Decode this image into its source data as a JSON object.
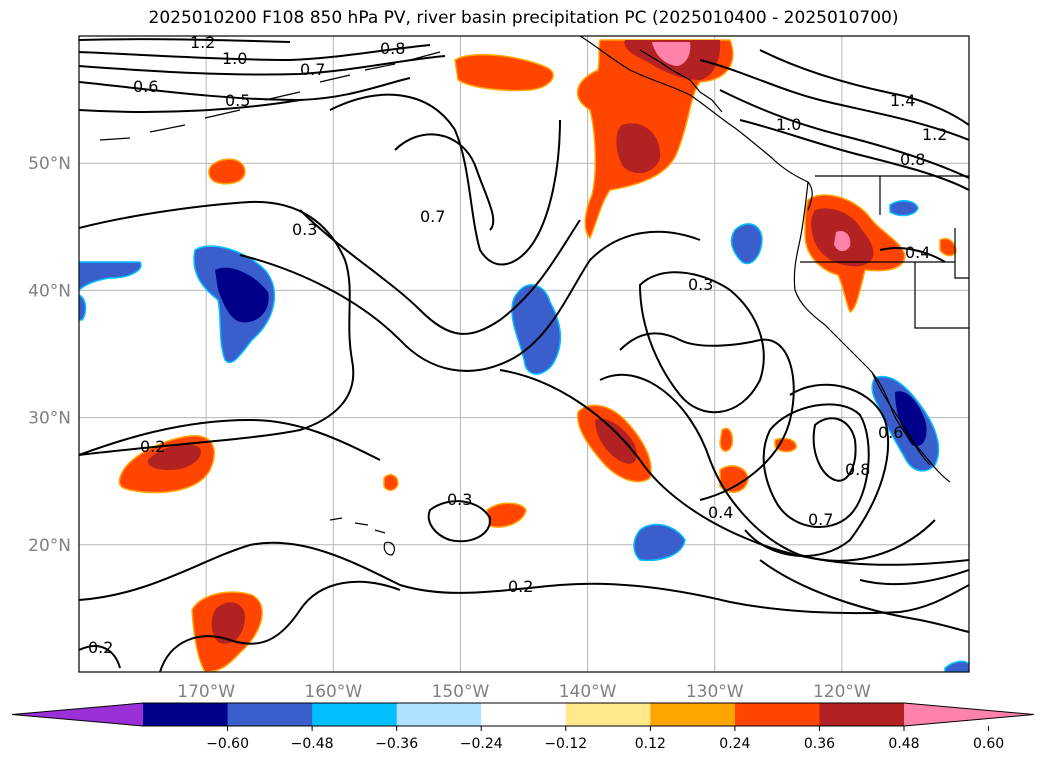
{
  "title": "2025010200 F108 850 hPa PV, river basin precipitation PC (2025010400 - 2025010700)",
  "map": {
    "projection": "PlateCarree",
    "lon_range": [
      -180,
      -110
    ],
    "lat_range": [
      10,
      60
    ],
    "lat_ticks": [
      {
        "value": 50,
        "label": "50°N"
      },
      {
        "value": 40,
        "label": "40°N"
      },
      {
        "value": 30,
        "label": "30°N"
      },
      {
        "value": 20,
        "label": "20°N"
      }
    ],
    "lon_ticks": [
      {
        "value": -170,
        "label": "170°W"
      },
      {
        "value": -160,
        "label": "160°W"
      },
      {
        "value": -150,
        "label": "150°W"
      },
      {
        "value": -140,
        "label": "140°W"
      },
      {
        "value": -130,
        "label": "130°W"
      },
      {
        "value": -120,
        "label": "120°W"
      }
    ],
    "gridlines": true,
    "pv_contour_labels": [
      "1.2",
      "1.0",
      "0.8",
      "0.7",
      "0.6",
      "0.5",
      "0.7",
      "0.3",
      "0.3",
      "0.4",
      "1.4",
      "1.2",
      "1.0",
      "0.8",
      "0.2",
      "0.3",
      "0.2",
      "0.2",
      "0.4",
      "0.7",
      "0.8",
      "0.6"
    ]
  },
  "colorbar": {
    "colors": [
      "#9b30d9",
      "#00008b",
      "#3a5fcd",
      "#00bfff",
      "#b0e2ff",
      "#ffffff",
      "#ffe98b",
      "#ffa500",
      "#ff4500",
      "#b22222",
      "#ff82ab"
    ],
    "tick_labels": [
      "−0.60",
      "−0.48",
      "−0.36",
      "−0.24",
      "−0.12",
      "0.12",
      "0.24",
      "0.36",
      "0.48",
      "0.60"
    ],
    "extend": "both"
  }
}
